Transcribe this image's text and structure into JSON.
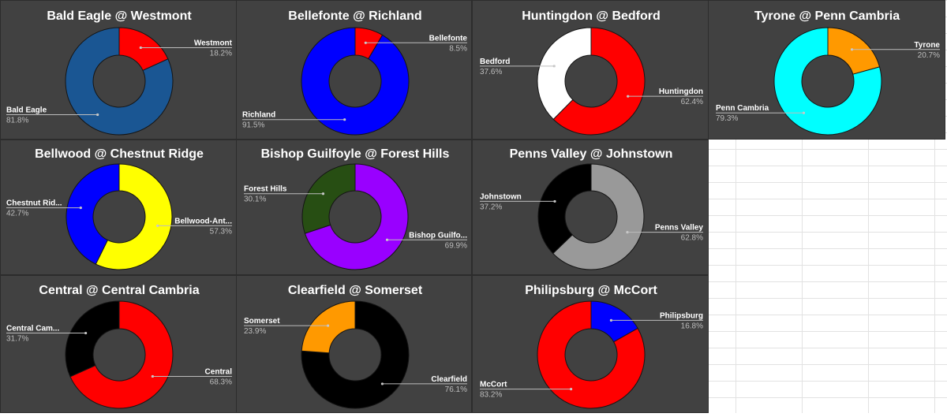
{
  "chart_data": [
    {
      "type": "pie",
      "title": "Bald Eagle @ Westmont",
      "hole": true,
      "slices": [
        {
          "label": "Westmont",
          "value": 18.2,
          "display": "18.2%",
          "color": "#ff0000"
        },
        {
          "label": "Bald Eagle",
          "value": 81.8,
          "display": "81.8%",
          "color": "#1a5693"
        }
      ]
    },
    {
      "type": "pie",
      "title": "Bellefonte @ Richland",
      "hole": true,
      "slices": [
        {
          "label": "Bellefonte",
          "value": 8.5,
          "display": "8.5%",
          "color": "#ff0000"
        },
        {
          "label": "Richland",
          "value": 91.5,
          "display": "91.5%",
          "color": "#0000ff"
        }
      ]
    },
    {
      "type": "pie",
      "title": "Huntingdon @ Bedford",
      "hole": true,
      "slices": [
        {
          "label": "Huntingdon",
          "value": 62.4,
          "display": "62.4%",
          "color": "#ff0000"
        },
        {
          "label": "Bedford",
          "value": 37.6,
          "display": "37.6%",
          "color": "#ffffff"
        }
      ]
    },
    {
      "type": "pie",
      "title": "Tyrone @ Penn Cambria",
      "hole": true,
      "slices": [
        {
          "label": "Tyrone",
          "value": 20.7,
          "display": "20.7%",
          "color": "#ff9900"
        },
        {
          "label": "Penn Cambria",
          "value": 79.3,
          "display": "79.3%",
          "color": "#00ffff"
        }
      ]
    },
    {
      "type": "pie",
      "title": "Bellwood @ Chestnut Ridge",
      "hole": true,
      "slices": [
        {
          "label": "Bellwood-Ant...",
          "value": 57.3,
          "display": "57.3%",
          "color": "#ffff00"
        },
        {
          "label": "Chestnut Rid...",
          "value": 42.7,
          "display": "42.7%",
          "color": "#0000ff"
        }
      ]
    },
    {
      "type": "pie",
      "title": "Bishop Guilfoyle @ Forest Hills",
      "hole": true,
      "slices": [
        {
          "label": "Bishop Guilfo...",
          "value": 69.9,
          "display": "69.9%",
          "color": "#9900ff"
        },
        {
          "label": "Forest Hills",
          "value": 30.1,
          "display": "30.1%",
          "color": "#274e13"
        }
      ]
    },
    {
      "type": "pie",
      "title": "Penns Valley @ Johnstown",
      "hole": true,
      "slices": [
        {
          "label": "Penns Valley",
          "value": 62.8,
          "display": "62.8%",
          "color": "#999999"
        },
        {
          "label": "Johnstown",
          "value": 37.2,
          "display": "37.2%",
          "color": "#000000"
        }
      ]
    },
    {
      "type": "pie",
      "title": "Central @ Central Cambria",
      "hole": true,
      "slices": [
        {
          "label": "Central",
          "value": 68.3,
          "display": "68.3%",
          "color": "#ff0000"
        },
        {
          "label": "Central Cam...",
          "value": 31.7,
          "display": "31.7%",
          "color": "#000000"
        }
      ]
    },
    {
      "type": "pie",
      "title": "Clearfield @ Somerset",
      "hole": true,
      "slices": [
        {
          "label": "Clearfield",
          "value": 76.1,
          "display": "76.1%",
          "color": "#000000"
        },
        {
          "label": "Somerset",
          "value": 23.9,
          "display": "23.9%",
          "color": "#ff9900"
        }
      ]
    },
    {
      "type": "pie",
      "title": "Philipsburg @ McCort",
      "hole": true,
      "slices": [
        {
          "label": "Philipsburg",
          "value": 16.8,
          "display": "16.8%",
          "color": "#0000ff"
        },
        {
          "label": "McCort",
          "value": 83.2,
          "display": "83.2%",
          "color": "#ff0000"
        }
      ]
    }
  ]
}
